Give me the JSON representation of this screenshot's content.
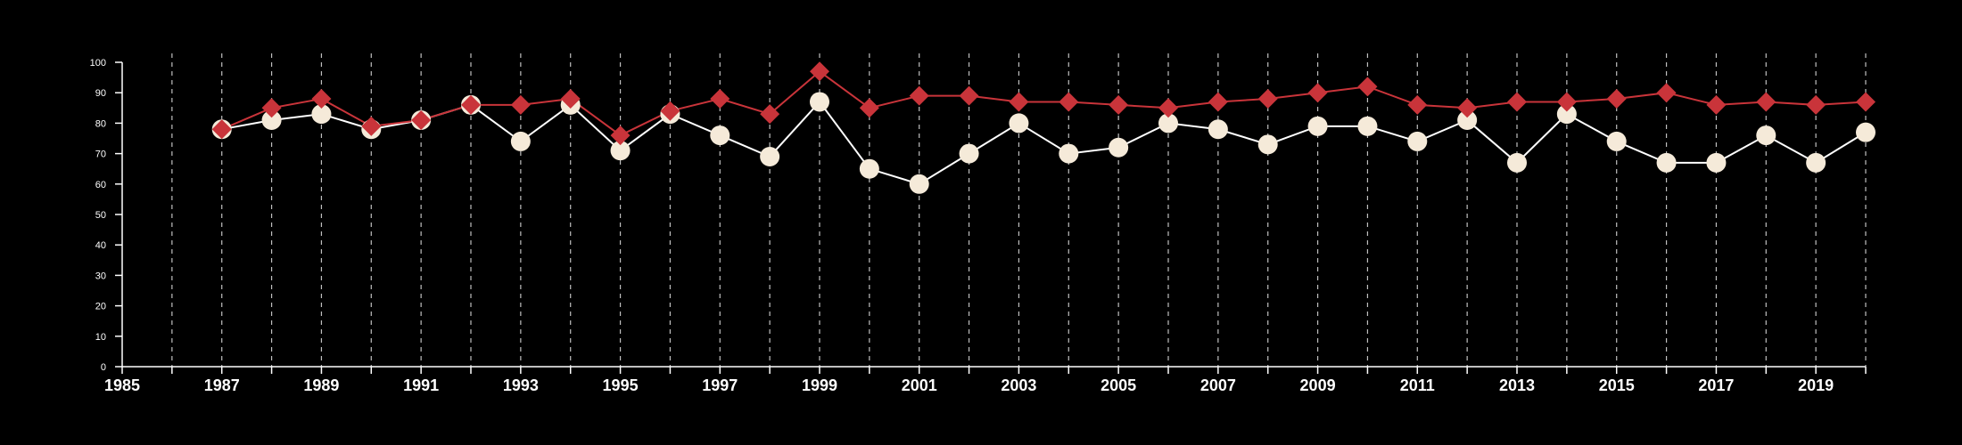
{
  "chart_data": {
    "type": "line",
    "title": "",
    "xlabel": "",
    "ylabel": "",
    "xlim": [
      1985,
      2020
    ],
    "ylim": [
      0,
      100
    ],
    "y_ticks": [
      0,
      10,
      20,
      30,
      40,
      50,
      60,
      70,
      80,
      90,
      100
    ],
    "x_ticks": [
      "1985",
      "1987",
      "1989",
      "1991",
      "1993",
      "1995",
      "1997",
      "1999",
      "2001",
      "2003",
      "2005",
      "2007",
      "2009",
      "2011",
      "2013",
      "2015",
      "2017",
      "2019"
    ],
    "grid": "vertical dashed lines at every year",
    "x": [
      1987,
      1988,
      1989,
      1990,
      1991,
      1992,
      1993,
      1994,
      1995,
      1996,
      1997,
      1998,
      1999,
      2000,
      2001,
      2002,
      2003,
      2004,
      2005,
      2006,
      2007,
      2008,
      2009,
      2010,
      2011,
      2012,
      2013,
      2014,
      2015,
      2016,
      2017,
      2018,
      2019,
      2020
    ],
    "series": [
      {
        "marker": "circle",
        "color": "#f5ead9",
        "line_color": "#ffffff",
        "values": [
          78,
          81,
          83,
          78,
          81,
          86,
          74,
          86,
          71,
          83,
          76,
          69,
          87,
          65,
          60,
          70,
          80,
          70,
          72,
          80,
          78,
          73,
          79,
          79,
          74,
          81,
          67,
          83,
          74,
          67,
          67,
          76,
          67,
          77
        ]
      },
      {
        "marker": "diamond",
        "color": "#c9343a",
        "line_color": "#c9343a",
        "values": [
          78,
          85,
          88,
          79,
          81,
          86,
          86,
          88,
          76,
          84,
          88,
          83,
          97,
          85,
          89,
          89,
          87,
          87,
          86,
          85,
          87,
          88,
          90,
          92,
          86,
          85,
          87,
          87,
          88,
          90,
          86,
          87,
          86,
          87
        ]
      }
    ]
  }
}
